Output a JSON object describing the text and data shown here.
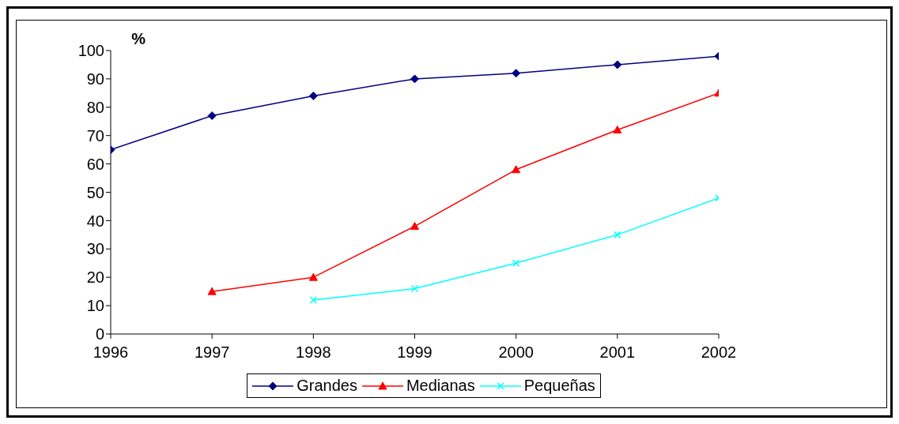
{
  "chart_data": {
    "type": "line",
    "ylabel": "%",
    "x": [
      1996,
      1997,
      1998,
      1999,
      2000,
      2001,
      2002
    ],
    "xlim": [
      1996,
      2002
    ],
    "xticks": [
      1996,
      1997,
      1998,
      1999,
      2000,
      2001,
      2002
    ],
    "ylim": [
      0,
      100
    ],
    "yticks": [
      0,
      10,
      20,
      30,
      40,
      50,
      60,
      70,
      80,
      90,
      100
    ],
    "grid": false,
    "legend": "bottom",
    "line_style": "solid",
    "series": [
      {
        "name": "Grandes",
        "color": "#000080",
        "marker": "diamond",
        "values": [
          65,
          77,
          84,
          90,
          92,
          95,
          98
        ]
      },
      {
        "name": "Medianas",
        "color": "#ff0000",
        "marker": "triangle",
        "values": [
          null,
          15,
          20,
          38,
          58,
          72,
          85
        ]
      },
      {
        "name": "Pequeñas",
        "color": "#00ffff",
        "marker": "cross",
        "values": [
          null,
          null,
          12,
          16,
          25,
          35,
          48
        ]
      }
    ]
  }
}
